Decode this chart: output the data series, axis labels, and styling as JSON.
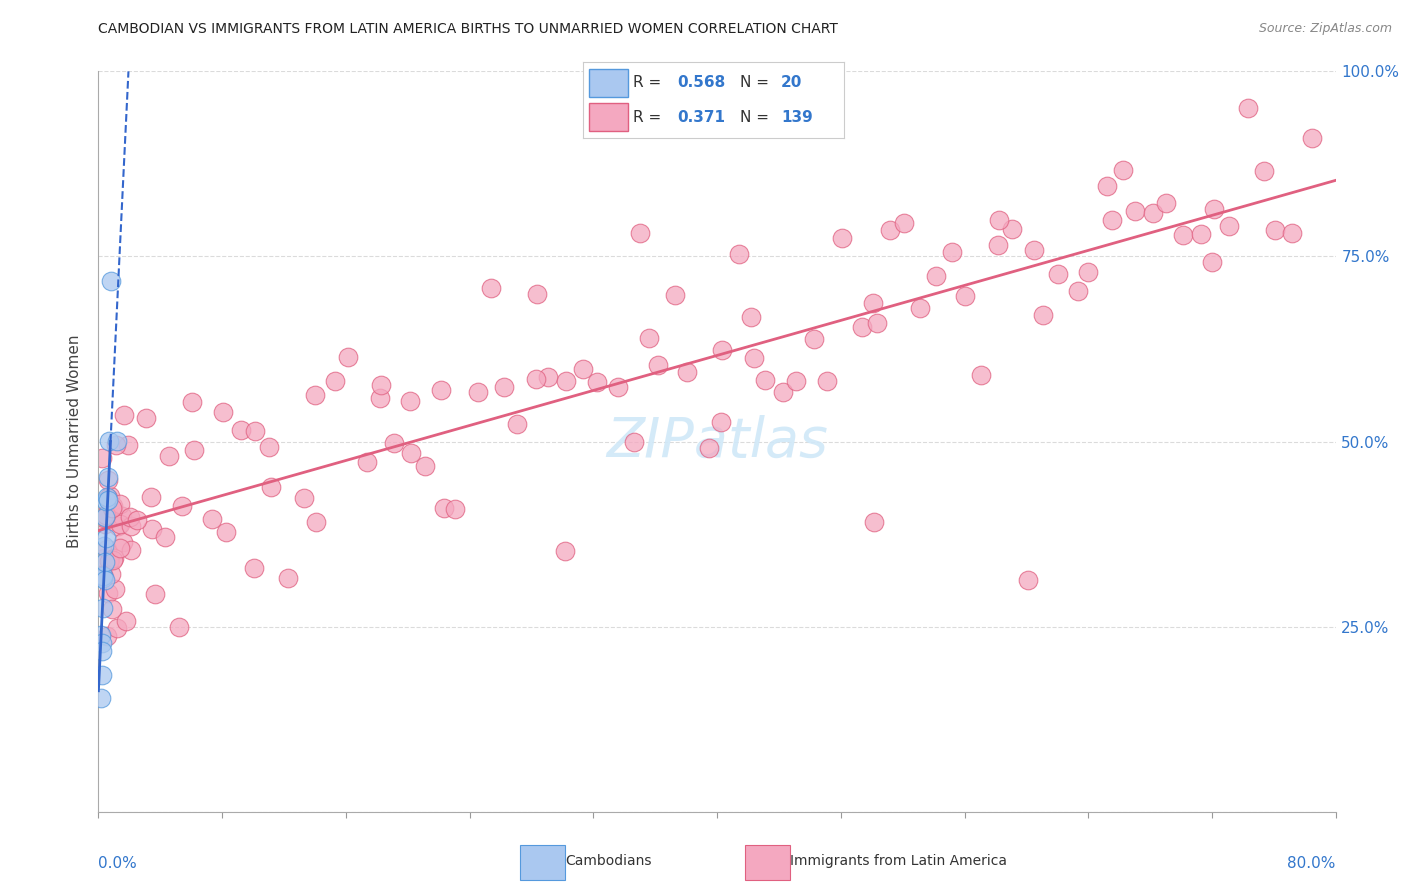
{
  "title": "CAMBODIAN VS IMMIGRANTS FROM LATIN AMERICA BIRTHS TO UNMARRIED WOMEN CORRELATION CHART",
  "source": "Source: ZipAtlas.com",
  "ylabel": "Births to Unmarried Women",
  "xlim": [
    0.0,
    80.0
  ],
  "ylim": [
    0.0,
    100.0
  ],
  "legend_r_cambodian": "0.568",
  "legend_n_cambodian": "20",
  "legend_r_latin": "0.371",
  "legend_n_latin": "139",
  "cambodian_color": "#aac8f0",
  "cambodian_edge": "#5599dd",
  "latin_color": "#f4a8c0",
  "latin_edge": "#e06080",
  "trendline_cambodian_color": "#3366cc",
  "trendline_latin_color": "#e06080",
  "label_color": "#3377cc",
  "background_color": "#ffffff",
  "grid_color": "#cccccc",
  "watermark_color": "#d0e8f8",
  "cam_x": [
    0.15,
    0.18,
    0.2,
    0.22,
    0.25,
    0.28,
    0.3,
    0.32,
    0.35,
    0.4,
    0.42,
    0.45,
    0.48,
    0.5,
    0.55,
    0.6,
    0.65,
    0.7,
    0.8,
    1.2
  ],
  "cam_y": [
    20.0,
    22.0,
    24.0,
    26.0,
    22.0,
    28.0,
    30.0,
    32.0,
    35.0,
    36.0,
    34.0,
    38.0,
    36.0,
    42.0,
    40.0,
    44.0,
    46.0,
    48.0,
    68.0,
    50.0
  ],
  "lat_x": [
    0.1,
    0.15,
    0.2,
    0.25,
    0.3,
    0.35,
    0.4,
    0.45,
    0.5,
    0.55,
    0.6,
    0.65,
    0.7,
    0.75,
    0.8,
    0.9,
    1.0,
    1.1,
    1.2,
    1.4,
    1.6,
    1.8,
    2.0,
    2.5,
    3.0,
    3.5,
    4.0,
    5.0,
    6.0,
    7.0,
    8.0,
    9.0,
    10.0,
    11.0,
    12.0,
    13.0,
    14.0,
    15.0,
    16.0,
    17.0,
    18.0,
    19.0,
    20.0,
    21.0,
    22.0,
    23.0,
    24.0,
    25.0,
    26.0,
    27.0,
    28.0,
    29.0,
    30.0,
    31.0,
    32.0,
    33.0,
    34.0,
    35.0,
    36.0,
    37.0,
    38.0,
    39.0,
    40.0,
    41.0,
    42.0,
    43.0,
    44.0,
    45.0,
    46.0,
    47.0,
    48.0,
    49.0,
    50.0,
    51.0,
    52.0,
    53.0,
    54.0,
    55.0,
    56.0,
    57.0,
    58.0,
    59.0,
    60.0,
    61.0,
    62.0,
    63.0,
    64.0,
    65.0,
    66.0,
    67.0,
    68.0,
    69.0,
    70.0,
    71.0,
    72.0,
    73.0,
    74.0,
    75.0,
    76.0,
    77.0,
    0.2,
    0.3,
    0.4,
    0.5,
    0.6,
    0.7,
    0.8,
    1.0,
    1.5,
    2.0,
    3.0,
    4.5,
    6.0,
    8.0,
    11.0,
    14.0,
    18.0,
    22.0,
    28.0,
    35.0,
    42.0,
    50.0,
    58.0,
    65.0,
    72.0,
    78.0,
    0.25,
    0.35,
    0.55,
    0.75,
    1.2,
    2.5,
    5.0,
    10.0,
    20.0,
    30.0,
    40.0,
    50.0,
    60.0
  ],
  "lat_y": [
    36.0,
    35.0,
    34.0,
    36.0,
    35.0,
    34.0,
    35.5,
    36.0,
    35.5,
    36.0,
    34.5,
    35.0,
    35.0,
    34.0,
    36.0,
    35.0,
    36.0,
    35.5,
    37.0,
    36.5,
    38.0,
    37.5,
    38.0,
    39.0,
    38.5,
    39.5,
    40.0,
    41.0,
    41.5,
    42.5,
    43.0,
    44.0,
    44.5,
    45.5,
    46.0,
    47.0,
    47.5,
    48.0,
    49.0,
    49.5,
    50.0,
    51.0,
    51.5,
    52.0,
    53.0,
    53.5,
    54.0,
    55.0,
    55.5,
    56.0,
    56.5,
    57.0,
    57.5,
    58.0,
    59.0,
    59.5,
    60.0,
    60.5,
    61.0,
    61.5,
    62.0,
    62.5,
    63.0,
    63.5,
    64.0,
    64.5,
    65.0,
    65.5,
    66.0,
    66.5,
    67.0,
    67.5,
    68.0,
    68.5,
    69.0,
    69.5,
    70.0,
    70.5,
    71.0,
    71.5,
    72.0,
    72.5,
    73.0,
    73.5,
    74.0,
    74.5,
    75.0,
    75.5,
    76.0,
    76.5,
    77.0,
    77.5,
    78.0,
    78.5,
    79.0,
    79.5,
    80.0,
    80.5,
    81.0,
    81.5,
    38.0,
    37.0,
    38.5,
    37.5,
    39.0,
    38.0,
    39.5,
    40.5,
    41.5,
    43.0,
    44.5,
    46.0,
    48.0,
    50.0,
    52.5,
    55.0,
    57.5,
    60.0,
    63.0,
    66.0,
    69.5,
    72.0,
    75.5,
    79.0,
    82.0,
    85.5,
    36.5,
    37.5,
    38.0,
    39.0,
    40.0,
    42.0,
    45.0,
    50.0,
    56.0,
    48.0,
    52.0,
    48.5,
    45.0
  ]
}
